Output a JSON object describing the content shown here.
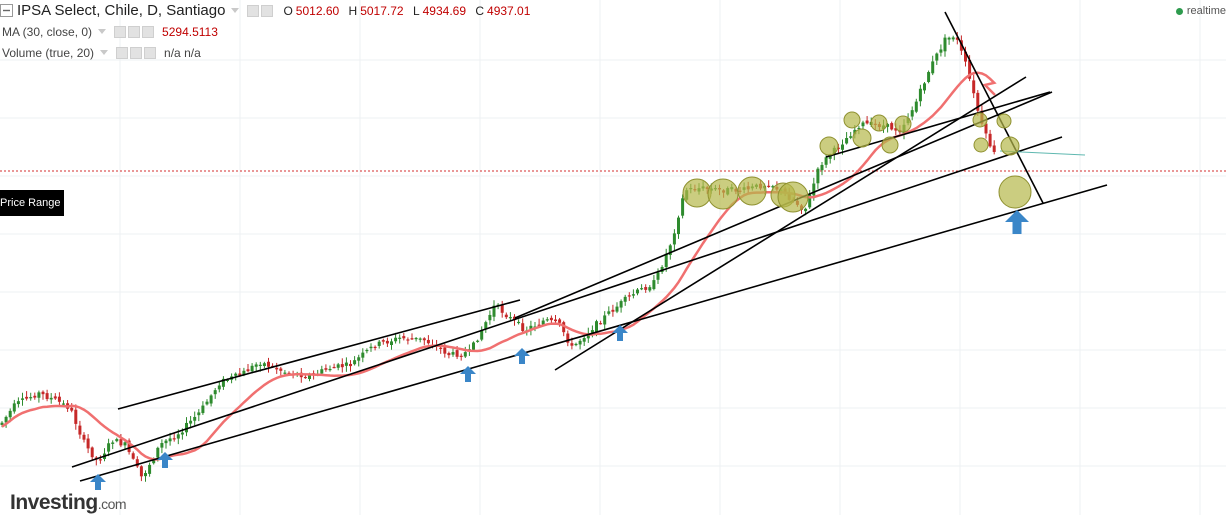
{
  "header": {
    "symbol": "IPSA Select, Chile, D, Santiago",
    "ohlc": [
      {
        "label": "O",
        "value": "5012.60"
      },
      {
        "label": "H",
        "value": "5017.72"
      },
      {
        "label": "L",
        "value": "4934.69"
      },
      {
        "label": "C",
        "value": "4937.01"
      }
    ],
    "ma_label": "MA (30, close, 0)",
    "ma_value": "5294.5113",
    "volume_label": "Volume (true, 20)",
    "volume_value": "n/a n/a",
    "realtime": "realtime"
  },
  "price_range_label": "Price Range",
  "logo": {
    "main": "Investing",
    "suffix": ".com"
  },
  "colors": {
    "up": "#2e8b2e",
    "down": "#c62828",
    "ma": "#f07070",
    "trendline": "#000000",
    "highlight": "#b5b84a",
    "arrow": "#3a86c8",
    "price_line": "#d32f2f",
    "realtime_dot": "#2e9b4e"
  },
  "chart_data": {
    "type": "candlestick",
    "y_reference": {
      "close": 4937.01,
      "ma30": 5294.5113
    },
    "note_shapes": [
      "trend-channel-lines",
      "support-arrows",
      "highlight-circles"
    ],
    "grid": true
  }
}
